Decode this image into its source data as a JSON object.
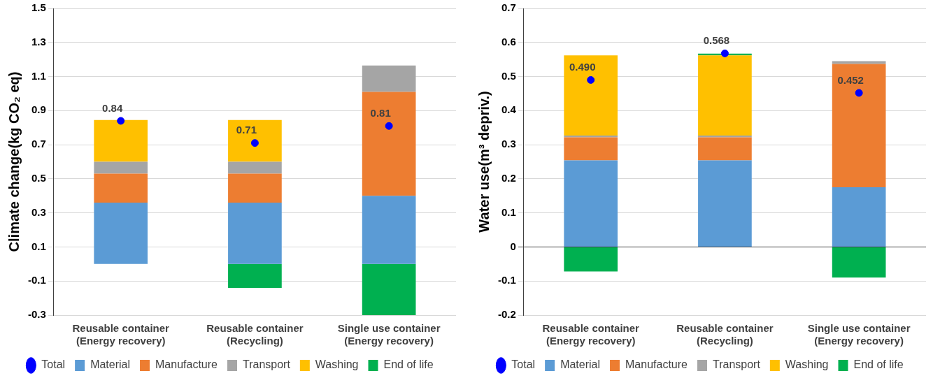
{
  "chart_data": [
    {
      "type": "bar",
      "stacked": true,
      "ylabel": "Climate change(kg CO₂ eq)",
      "categories": [
        "Reusable container\n(Energy recovery)",
        "Reusable container\n(Recycling)",
        "Single use container\n(Energy recovery)"
      ],
      "series": [
        {
          "name": "Material",
          "color": "#5b9bd5",
          "values": [
            0.36,
            0.36,
            0.4
          ]
        },
        {
          "name": "Manufacture",
          "color": "#ed7d31",
          "values": [
            0.17,
            0.17,
            0.61
          ]
        },
        {
          "name": "Transport",
          "color": "#a5a5a5",
          "values": [
            0.07,
            0.07,
            0.155
          ]
        },
        {
          "name": "Washing",
          "color": "#ffc000",
          "values": [
            0.245,
            0.245,
            0
          ]
        },
        {
          "name": "End of life",
          "color": "#00b050",
          "values": [
            0,
            -0.14,
            -0.3
          ]
        },
        {
          "name": "Total",
          "type": "scatter",
          "color": "#0000ff",
          "values": [
            0.84,
            0.71,
            0.81
          ],
          "value_labels": [
            "0.84",
            "0.71",
            "0.81"
          ]
        }
      ],
      "marker": "circle",
      "ylim": [
        -0.3,
        1.5
      ],
      "yticks": [
        -0.3,
        -0.1,
        0.1,
        0.3,
        0.5,
        0.7,
        0.9,
        1.1,
        1.3,
        1.5
      ],
      "grid": "y",
      "legend": "bottom"
    },
    {
      "type": "bar",
      "stacked": true,
      "ylabel": "Water use(m³ depriv.)",
      "categories": [
        "Reusable container\n(Energy recovery)",
        "Reusable container\n(Recycling)",
        "Single use container\n(Energy recovery)"
      ],
      "series": [
        {
          "name": "Material",
          "color": "#5b9bd5",
          "values": [
            0.254,
            0.254,
            0.175
          ]
        },
        {
          "name": "Manufacture",
          "color": "#ed7d31",
          "values": [
            0.068,
            0.068,
            0.362
          ]
        },
        {
          "name": "Transport",
          "color": "#a5a5a5",
          "values": [
            0.005,
            0.005,
            0.008
          ]
        },
        {
          "name": "Washing",
          "color": "#ffc000",
          "values": [
            0.235,
            0.235,
            0
          ]
        },
        {
          "name": "End of life",
          "color": "#00b050",
          "values": [
            -0.072,
            0.005,
            -0.09
          ]
        },
        {
          "name": "Total",
          "type": "scatter",
          "color": "#0000ff",
          "values": [
            0.49,
            0.568,
            0.452
          ],
          "value_labels": [
            "0.490",
            "0.568",
            "0.452"
          ]
        }
      ],
      "marker": "circle",
      "ylim": [
        -0.2,
        0.7
      ],
      "yticks": [
        -0.2,
        -0.1,
        0,
        0.1,
        0.2,
        0.3,
        0.4,
        0.5,
        0.6,
        0.7
      ],
      "grid": "y",
      "legend": "bottom"
    }
  ]
}
